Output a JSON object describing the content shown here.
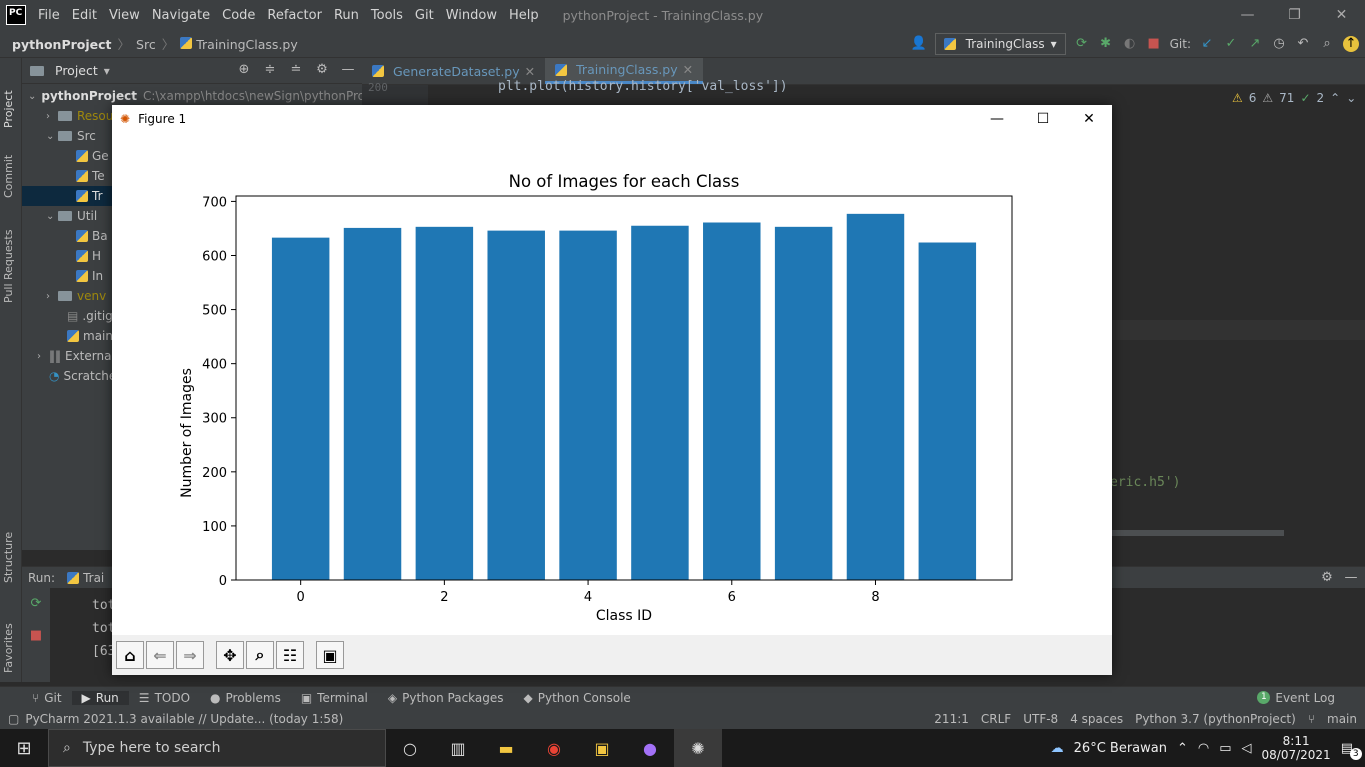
{
  "titlebar": {
    "logo": "PC",
    "menu": [
      "File",
      "Edit",
      "View",
      "Navigate",
      "Code",
      "Refactor",
      "Run",
      "Tools",
      "Git",
      "Window",
      "Help"
    ],
    "title": "pythonProject - TrainingClass.py"
  },
  "navbar": {
    "project": "pythonProject",
    "folder": "Src",
    "file": "TrainingClass.py",
    "run_config": "TrainingClass",
    "git_label": "Git:"
  },
  "left_strip": {
    "tabs": [
      "Project",
      "Commit",
      "Pull Requests",
      "Structure",
      "Favorites"
    ]
  },
  "project_panel": {
    "title": "Project",
    "root_name": "pythonProject",
    "root_path": "C:\\xampp\\htdocs\\newSign\\pythonProje",
    "rows": [
      {
        "label": "Resou",
        "kind": "folder",
        "indent": 2,
        "arrow": "›"
      },
      {
        "label": "Src",
        "kind": "folder",
        "indent": 2,
        "arrow": "⌄"
      },
      {
        "label": "Ge",
        "kind": "py",
        "indent": 4,
        "arrow": ""
      },
      {
        "label": "Te",
        "kind": "py",
        "indent": 4,
        "arrow": ""
      },
      {
        "label": "Tr",
        "kind": "py",
        "indent": 4,
        "arrow": ""
      },
      {
        "label": "Util",
        "kind": "folder",
        "indent": 2,
        "arrow": "⌄"
      },
      {
        "label": "Ba",
        "kind": "py",
        "indent": 4,
        "arrow": ""
      },
      {
        "label": "H",
        "kind": "py",
        "indent": 4,
        "arrow": ""
      },
      {
        "label": "In",
        "kind": "py",
        "indent": 4,
        "arrow": ""
      },
      {
        "label": "venv",
        "kind": "folder",
        "indent": 2,
        "arrow": "›"
      },
      {
        "label": ".gitig",
        "kind": "file",
        "indent": 3,
        "arrow": ""
      },
      {
        "label": "main.",
        "kind": "py",
        "indent": 3,
        "arrow": ""
      },
      {
        "label": "External",
        "kind": "lib",
        "indent": 1,
        "arrow": "›"
      },
      {
        "label": "Scratche",
        "kind": "scratch",
        "indent": 1,
        "arrow": ""
      }
    ]
  },
  "editor": {
    "tabs": [
      {
        "label": "GenerateDataset.py"
      },
      {
        "label": "TrainingClass.py"
      }
    ],
    "line_number": "200",
    "code_line": "plt.plot(history.history['val_loss'])",
    "code_fragment": "eric.h5')",
    "inspections": {
      "warnings": "6",
      "weak_warnings": "71",
      "ok": "2"
    }
  },
  "run_panel": {
    "label": "Run:",
    "config": "Trai",
    "lines": [
      "tot",
      "tot",
      "[63"
    ]
  },
  "bottom_tools": [
    {
      "label": "Git",
      "icon": "git-icon"
    },
    {
      "label": "Run",
      "icon": "run-icon"
    },
    {
      "label": "TODO",
      "icon": "todo-icon"
    },
    {
      "label": "Problems",
      "icon": "problems-icon"
    },
    {
      "label": "Terminal",
      "icon": "terminal-icon"
    },
    {
      "label": "Python Packages",
      "icon": "packages-icon"
    },
    {
      "label": "Python Console",
      "icon": "console-icon"
    }
  ],
  "event_log": {
    "count": "1",
    "label": "Event Log"
  },
  "statusbar": {
    "message": "PyCharm 2021.1.3 available // Update... (today 1:58)",
    "position": "211:1",
    "line_sep": "CRLF",
    "encoding": "UTF-8",
    "indent": "4 spaces",
    "interpreter": "Python 3.7 (pythonProject)",
    "branch": "main"
  },
  "taskbar": {
    "search_placeholder": "Type here to search",
    "weather": "26°C  Berawan",
    "time": "8:11",
    "date": "08/07/2021",
    "notif_count": "3"
  },
  "figure": {
    "window_title": "Figure 1"
  },
  "chart_data": {
    "type": "bar",
    "title": "No of Images for each Class",
    "xlabel": "Class ID",
    "ylabel": "Number of Images",
    "x": [
      0,
      1,
      2,
      3,
      4,
      5,
      6,
      7,
      8,
      9
    ],
    "values": [
      633,
      651,
      653,
      646,
      646,
      655,
      661,
      653,
      677,
      624
    ],
    "xticks": [
      0,
      2,
      4,
      6,
      8
    ],
    "yticks": [
      0,
      100,
      200,
      300,
      400,
      500,
      600,
      700
    ],
    "ylim": [
      0,
      710
    ],
    "xlim": [
      -0.9,
      9.9
    ],
    "color": "#1f77b4",
    "grid": false
  }
}
